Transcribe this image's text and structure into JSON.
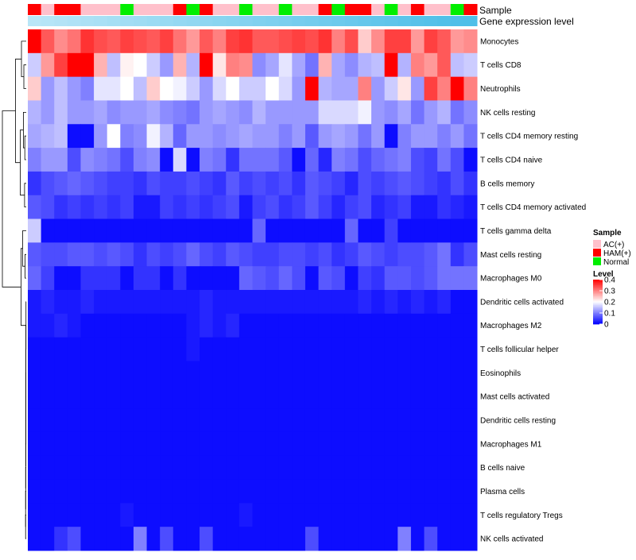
{
  "chart_data": {
    "type": "heatmap",
    "title": "",
    "annotation_tracks": [
      "Sample",
      "Gene expression level"
    ],
    "cell_types": [
      "Monocytes",
      "T cells CD8",
      "Neutrophils",
      "NK cells resting",
      "T cells CD4 memory resting",
      "T cells CD4 naive",
      "B cells memory",
      "T cells CD4 memory activated",
      "T cells gamma delta",
      "Mast cells resting",
      "Macrophages M0",
      "Dendritic cells activated",
      "Macrophages M2",
      "T cells follicular helper",
      "Eosinophils",
      "Mast cells activated",
      "Dendritic cells resting",
      "Macrophages M1",
      "B cells naive",
      "Plasma cells",
      "T cells regulatory  Tregs",
      "NK cells activated"
    ],
    "sample_groups": [
      "HAM",
      "AC",
      "HAM",
      "HAM",
      "AC",
      "AC",
      "AC",
      "Normal",
      "AC",
      "AC",
      "AC",
      "HAM",
      "Normal",
      "HAM",
      "AC",
      "AC",
      "Normal",
      "AC",
      "AC",
      "Normal",
      "AC",
      "AC",
      "HAM",
      "Normal",
      "HAM",
      "HAM",
      "AC",
      "Normal",
      "AC",
      "HAM",
      "AC",
      "AC",
      "Normal",
      "HAM"
    ],
    "gene_expression_level": [
      0.05,
      0.08,
      0.11,
      0.14,
      0.17,
      0.2,
      0.23,
      0.26,
      0.29,
      0.32,
      0.35,
      0.38,
      0.41,
      0.44,
      0.47,
      0.5,
      0.53,
      0.56,
      0.59,
      0.62,
      0.65,
      0.68,
      0.71,
      0.74,
      0.77,
      0.8,
      0.83,
      0.86,
      0.89,
      0.92,
      0.95,
      0.97,
      0.99,
      1.0
    ],
    "legend": {
      "sample_title": "Sample",
      "sample_entries": [
        {
          "key": "AC",
          "label": "AC(+)",
          "color": "#ffc0cb"
        },
        {
          "key": "HAM",
          "label": "HAM(+)",
          "color": "#ff0000"
        },
        {
          "key": "Normal",
          "label": "Normal",
          "color": "#00ee00"
        }
      ],
      "level_title": "Level",
      "level_ticks": [
        "0.4",
        "0.3",
        "0.2",
        "0.1",
        "0"
      ],
      "level_range": [
        0,
        0.4
      ],
      "placement": "right"
    },
    "colors": {
      "low": "#0000ff",
      "mid": "#ffffff",
      "high": "#ff0000",
      "expr_light": "#bfe8f8",
      "expr_dark": "#4fbfe8"
    },
    "values": [
      [
        0.4,
        0.33,
        0.29,
        0.31,
        0.36,
        0.34,
        0.33,
        0.35,
        0.34,
        0.33,
        0.35,
        0.31,
        0.28,
        0.33,
        0.3,
        0.35,
        0.36,
        0.33,
        0.33,
        0.34,
        0.35,
        0.34,
        0.36,
        0.3,
        0.34,
        0.24,
        0.29,
        0.35,
        0.35,
        0.28,
        0.35,
        0.33,
        0.28,
        0.29
      ],
      [
        0.16,
        0.28,
        0.35,
        0.4,
        0.4,
        0.26,
        0.15,
        0.21,
        0.2,
        0.16,
        0.12,
        0.26,
        0.14,
        0.4,
        0.22,
        0.3,
        0.29,
        0.11,
        0.13,
        0.18,
        0.13,
        0.09,
        0.26,
        0.13,
        0.11,
        0.14,
        0.15,
        0.4,
        0.14,
        0.3,
        0.28,
        0.33,
        0.15,
        0.16
      ],
      [
        0.24,
        0.12,
        0.15,
        0.12,
        0.1,
        0.18,
        0.18,
        0.2,
        0.15,
        0.24,
        0.2,
        0.19,
        0.16,
        0.12,
        0.17,
        0.2,
        0.16,
        0.16,
        0.2,
        0.17,
        0.12,
        0.4,
        0.14,
        0.13,
        0.13,
        0.3,
        0.12,
        0.16,
        0.22,
        0.12,
        0.35,
        0.3,
        0.4,
        0.3
      ],
      [
        0.14,
        0.12,
        0.15,
        0.12,
        0.12,
        0.13,
        0.11,
        0.12,
        0.12,
        0.13,
        0.11,
        0.1,
        0.09,
        0.12,
        0.13,
        0.12,
        0.11,
        0.14,
        0.12,
        0.12,
        0.12,
        0.12,
        0.17,
        0.17,
        0.17,
        0.19,
        0.12,
        0.11,
        0.13,
        0.09,
        0.12,
        0.14,
        0.09,
        0.11
      ],
      [
        0.13,
        0.14,
        0.15,
        0.01,
        0.01,
        0.12,
        0.2,
        0.1,
        0.11,
        0.19,
        0.14,
        0.08,
        0.12,
        0.12,
        0.11,
        0.12,
        0.13,
        0.12,
        0.12,
        0.1,
        0.12,
        0.07,
        0.12,
        0.13,
        0.12,
        0.09,
        0.12,
        0.01,
        0.1,
        0.12,
        0.12,
        0.1,
        0.12,
        0.09
      ],
      [
        0.1,
        0.12,
        0.12,
        0.06,
        0.11,
        0.1,
        0.09,
        0.06,
        0.1,
        0.11,
        0.01,
        0.17,
        0.01,
        0.1,
        0.09,
        0.04,
        0.09,
        0.09,
        0.09,
        0.07,
        0.01,
        0.08,
        0.03,
        0.1,
        0.09,
        0.06,
        0.08,
        0.09,
        0.1,
        0.06,
        0.05,
        0.09,
        0.06,
        0.01
      ],
      [
        0.04,
        0.06,
        0.07,
        0.08,
        0.07,
        0.06,
        0.05,
        0.05,
        0.04,
        0.06,
        0.05,
        0.05,
        0.06,
        0.05,
        0.04,
        0.07,
        0.05,
        0.06,
        0.05,
        0.06,
        0.04,
        0.07,
        0.06,
        0.05,
        0.03,
        0.06,
        0.05,
        0.06,
        0.07,
        0.06,
        0.05,
        0.04,
        0.06,
        0.04
      ],
      [
        0.07,
        0.06,
        0.04,
        0.05,
        0.04,
        0.05,
        0.04,
        0.05,
        0.02,
        0.02,
        0.05,
        0.04,
        0.05,
        0.04,
        0.05,
        0.06,
        0.02,
        0.05,
        0.06,
        0.04,
        0.05,
        0.07,
        0.05,
        0.03,
        0.05,
        0.06,
        0.03,
        0.04,
        0.05,
        0.02,
        0.02,
        0.04,
        0.03,
        0.02
      ],
      [
        0.16,
        0.01,
        0.01,
        0.01,
        0.01,
        0.01,
        0.01,
        0.01,
        0.01,
        0.01,
        0.01,
        0.01,
        0.01,
        0.01,
        0.01,
        0.01,
        0.01,
        0.08,
        0.01,
        0.01,
        0.01,
        0.01,
        0.01,
        0.01,
        0.08,
        0.01,
        0.01,
        0.05,
        0.01,
        0.01,
        0.01,
        0.01,
        0.01,
        0.01
      ],
      [
        0.07,
        0.06,
        0.06,
        0.07,
        0.07,
        0.06,
        0.07,
        0.06,
        0.04,
        0.06,
        0.05,
        0.06,
        0.08,
        0.06,
        0.05,
        0.07,
        0.06,
        0.05,
        0.05,
        0.06,
        0.06,
        0.05,
        0.06,
        0.04,
        0.05,
        0.07,
        0.06,
        0.05,
        0.06,
        0.06,
        0.07,
        0.09,
        0.04,
        0.06
      ],
      [
        0.08,
        0.05,
        0.01,
        0.01,
        0.04,
        0.04,
        0.04,
        0.01,
        0.04,
        0.04,
        0.01,
        0.04,
        0.01,
        0.01,
        0.01,
        0.01,
        0.08,
        0.07,
        0.06,
        0.08,
        0.06,
        0.01,
        0.07,
        0.06,
        0.01,
        0.05,
        0.04,
        0.07,
        0.07,
        0.06,
        0.07,
        0.09,
        0.09,
        0.09
      ],
      [
        0.02,
        0.03,
        0.02,
        0.02,
        0.03,
        0.02,
        0.02,
        0.02,
        0.02,
        0.02,
        0.02,
        0.02,
        0.02,
        0.03,
        0.02,
        0.02,
        0.02,
        0.02,
        0.02,
        0.02,
        0.02,
        0.02,
        0.02,
        0.02,
        0.02,
        0.03,
        0.02,
        0.03,
        0.02,
        0.03,
        0.02,
        0.03,
        0.01,
        0.01
      ],
      [
        0.02,
        0.02,
        0.03,
        0.02,
        0.01,
        0.01,
        0.01,
        0.01,
        0.01,
        0.01,
        0.01,
        0.01,
        0.02,
        0.03,
        0.02,
        0.03,
        0.01,
        0.01,
        0.01,
        0.01,
        0.01,
        0.01,
        0.01,
        0.01,
        0.01,
        0.01,
        0.01,
        0.01,
        0.01,
        0.01,
        0.01,
        0.01,
        0.01,
        0.01
      ],
      [
        0.01,
        0.01,
        0.01,
        0.01,
        0.01,
        0.01,
        0.01,
        0.01,
        0.01,
        0.01,
        0.01,
        0.01,
        0.02,
        0.01,
        0.01,
        0.01,
        0.01,
        0.01,
        0.01,
        0.01,
        0.01,
        0.01,
        0.01,
        0.01,
        0.01,
        0.01,
        0.01,
        0.01,
        0.01,
        0.01,
        0.01,
        0.01,
        0.01,
        0.01
      ],
      [
        0.01,
        0.01,
        0.01,
        0.01,
        0.01,
        0.01,
        0.01,
        0.01,
        0.01,
        0.01,
        0.01,
        0.01,
        0.01,
        0.01,
        0.01,
        0.01,
        0.01,
        0.01,
        0.01,
        0.01,
        0.01,
        0.01,
        0.01,
        0.01,
        0.01,
        0.01,
        0.01,
        0.01,
        0.01,
        0.01,
        0.01,
        0.01,
        0.01,
        0.01
      ],
      [
        0.01,
        0.01,
        0.01,
        0.01,
        0.01,
        0.01,
        0.01,
        0.01,
        0.01,
        0.01,
        0.01,
        0.01,
        0.01,
        0.01,
        0.01,
        0.01,
        0.01,
        0.01,
        0.01,
        0.01,
        0.01,
        0.01,
        0.01,
        0.01,
        0.01,
        0.01,
        0.01,
        0.01,
        0.01,
        0.01,
        0.01,
        0.01,
        0.01,
        0.01
      ],
      [
        0.01,
        0.01,
        0.01,
        0.01,
        0.01,
        0.01,
        0.01,
        0.01,
        0.01,
        0.01,
        0.01,
        0.01,
        0.01,
        0.01,
        0.01,
        0.01,
        0.01,
        0.01,
        0.01,
        0.01,
        0.01,
        0.01,
        0.01,
        0.01,
        0.01,
        0.01,
        0.01,
        0.01,
        0.01,
        0.01,
        0.01,
        0.01,
        0.01,
        0.01
      ],
      [
        0.01,
        0.01,
        0.01,
        0.01,
        0.01,
        0.01,
        0.01,
        0.01,
        0.01,
        0.01,
        0.01,
        0.01,
        0.01,
        0.01,
        0.01,
        0.01,
        0.01,
        0.01,
        0.01,
        0.01,
        0.01,
        0.01,
        0.01,
        0.01,
        0.01,
        0.01,
        0.01,
        0.01,
        0.01,
        0.01,
        0.01,
        0.01,
        0.01,
        0.01
      ],
      [
        0.01,
        0.01,
        0.01,
        0.01,
        0.01,
        0.01,
        0.01,
        0.01,
        0.01,
        0.01,
        0.01,
        0.01,
        0.01,
        0.01,
        0.01,
        0.01,
        0.01,
        0.01,
        0.01,
        0.01,
        0.01,
        0.01,
        0.01,
        0.01,
        0.01,
        0.01,
        0.01,
        0.01,
        0.01,
        0.01,
        0.01,
        0.01,
        0.01,
        0.01
      ],
      [
        0.01,
        0.01,
        0.01,
        0.01,
        0.01,
        0.01,
        0.01,
        0.01,
        0.01,
        0.01,
        0.01,
        0.01,
        0.01,
        0.01,
        0.01,
        0.01,
        0.01,
        0.01,
        0.01,
        0.01,
        0.01,
        0.01,
        0.01,
        0.01,
        0.01,
        0.01,
        0.01,
        0.01,
        0.01,
        0.01,
        0.01,
        0.01,
        0.01,
        0.01
      ],
      [
        0.01,
        0.01,
        0.01,
        0.01,
        0.01,
        0.01,
        0.01,
        0.02,
        0.01,
        0.01,
        0.01,
        0.01,
        0.01,
        0.01,
        0.01,
        0.01,
        0.02,
        0.01,
        0.01,
        0.01,
        0.01,
        0.01,
        0.01,
        0.01,
        0.01,
        0.01,
        0.01,
        0.01,
        0.01,
        0.01,
        0.01,
        0.01,
        0.01,
        0.01
      ],
      [
        0.01,
        0.01,
        0.04,
        0.06,
        0.01,
        0.01,
        0.01,
        0.01,
        0.1,
        0.01,
        0.06,
        0.01,
        0.01,
        0.06,
        0.01,
        0.01,
        0.01,
        0.01,
        0.01,
        0.01,
        0.01,
        0.06,
        0.01,
        0.01,
        0.01,
        0.01,
        0.01,
        0.01,
        0.1,
        0.01,
        0.06,
        0.01,
        0.01,
        0.01
      ]
    ]
  }
}
